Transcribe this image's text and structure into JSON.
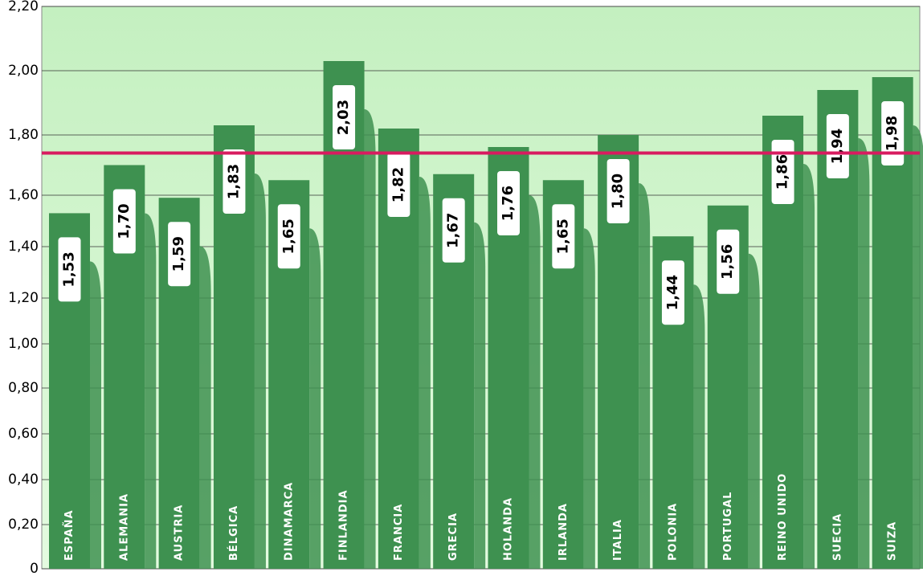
{
  "chart_data": {
    "type": "bar",
    "categories": [
      "ESPAÑA",
      "ALEMANIA",
      "AUSTRIA",
      "BÉLGICA",
      "DINAMARCA",
      "FINLANDIA",
      "FRANCIA",
      "GRECIA",
      "HOLANDA",
      "IRLANDA",
      "ITALIA",
      "POLONIA",
      "PORTUGAL",
      "REINO UNIDO",
      "SUECIA",
      "SUIZA"
    ],
    "values": [
      1.53,
      1.7,
      1.59,
      1.83,
      1.65,
      2.03,
      1.82,
      1.67,
      1.76,
      1.65,
      1.8,
      1.44,
      1.56,
      1.86,
      1.94,
      1.98
    ],
    "value_labels": [
      "1,53",
      "1,70",
      "1,59",
      "1,83",
      "1,65",
      "2,03",
      "1,82",
      "1,67",
      "1,76",
      "1,65",
      "1,80",
      "1,44",
      "1,56",
      "1,86",
      "1,94",
      "1,98"
    ],
    "color": "#3e9150",
    "ylim": [
      0,
      2.2
    ],
    "yticks": [
      0,
      {
        "value": 0.2,
        "label": "0,20"
      },
      {
        "value": 0.4,
        "label": "0,40"
      },
      {
        "value": 0.6,
        "label": "0,60"
      },
      {
        "value": 0.8,
        "label": "0,80"
      },
      {
        "value": 1.0,
        "label": "1,00"
      },
      {
        "value": 1.2,
        "label": "1,20"
      },
      {
        "value": 1.4,
        "label": "1,40"
      },
      {
        "value": 1.6,
        "label": "1,60"
      },
      {
        "value": 1.8,
        "label": "1,80"
      },
      {
        "value": 2.0,
        "label": "2,00"
      },
      {
        "value": 2.2,
        "label": "2,20"
      }
    ],
    "reference_line": 1.74,
    "reference_color": "#d81b60",
    "grid": true
  }
}
